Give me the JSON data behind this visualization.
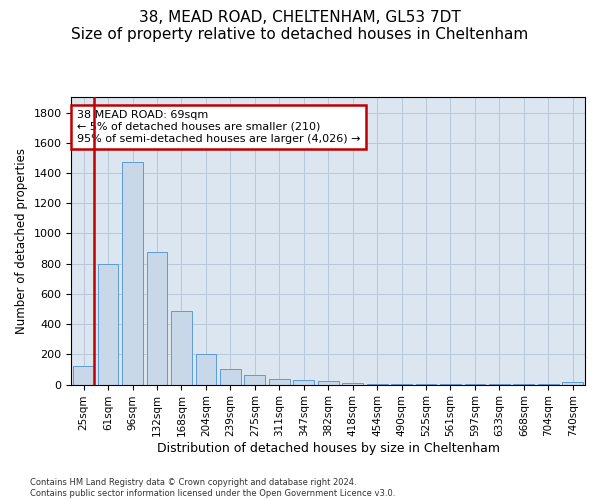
{
  "title": "38, MEAD ROAD, CHELTENHAM, GL53 7DT",
  "subtitle": "Size of property relative to detached houses in Cheltenham",
  "xlabel": "Distribution of detached houses by size in Cheltenham",
  "ylabel": "Number of detached properties",
  "footnote1": "Contains HM Land Registry data © Crown copyright and database right 2024.",
  "footnote2": "Contains public sector information licensed under the Open Government Licence v3.0.",
  "categories": [
    "25sqm",
    "61sqm",
    "96sqm",
    "132sqm",
    "168sqm",
    "204sqm",
    "239sqm",
    "275sqm",
    "311sqm",
    "347sqm",
    "382sqm",
    "418sqm",
    "454sqm",
    "490sqm",
    "525sqm",
    "561sqm",
    "597sqm",
    "633sqm",
    "668sqm",
    "704sqm",
    "740sqm"
  ],
  "values": [
    125,
    800,
    1475,
    880,
    490,
    205,
    105,
    65,
    40,
    33,
    22,
    10,
    5,
    3,
    2,
    1,
    1,
    1,
    1,
    1,
    15
  ],
  "bar_color": "#c8d8e8",
  "bar_edge_color": "#5b9bd5",
  "vline_color": "#c00000",
  "vline_x_idx": 0,
  "annotation_line1": "38 MEAD ROAD: 69sqm",
  "annotation_line2": "← 5% of detached houses are smaller (210)",
  "annotation_line3": "95% of semi-detached houses are larger (4,026) →",
  "annotation_box_edge_color": "#c00000",
  "ylim": [
    0,
    1900
  ],
  "yticks": [
    0,
    200,
    400,
    600,
    800,
    1000,
    1200,
    1400,
    1600,
    1800
  ],
  "ax_facecolor": "#dce6f0",
  "bg_color": "#ffffff",
  "grid_color": "#b8c8d8",
  "title_fontsize": 11,
  "xlabel_fontsize": 9,
  "ylabel_fontsize": 8.5,
  "tick_fontsize": 8,
  "xtick_fontsize": 7.5
}
